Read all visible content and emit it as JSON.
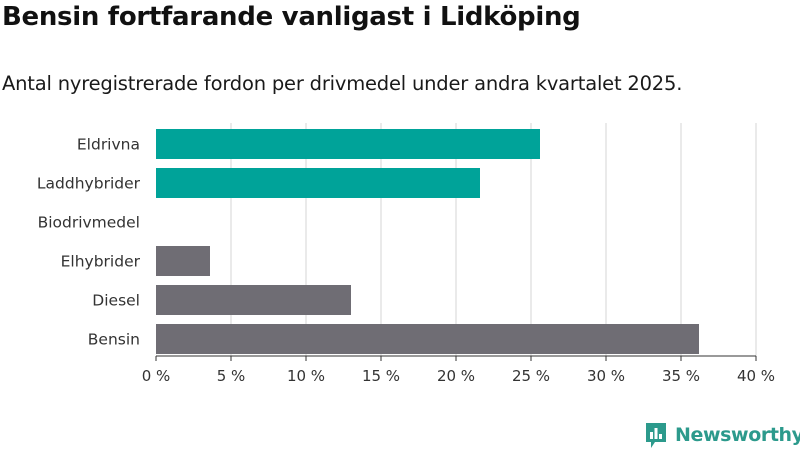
{
  "chart_data": {
    "type": "bar",
    "orientation": "horizontal",
    "title": "Bensin fortfarande vanligast i Lidköping",
    "subtitle": "Antal nyregistrerade fordon per drivmedel under andra kvartalet 2025.",
    "categories": [
      "Eldrivna",
      "Laddhybrider",
      "Biodrivmedel",
      "Elhybrider",
      "Diesel",
      "Bensin"
    ],
    "values": [
      25.6,
      21.6,
      0,
      3.6,
      13.0,
      36.2
    ],
    "bar_colors": [
      "#00a399",
      "#00a399",
      "#00a399",
      "#6f6d74",
      "#6f6d74",
      "#6f6d74"
    ],
    "xlim": [
      0,
      40
    ],
    "xticks": [
      0,
      5,
      10,
      15,
      20,
      25,
      30,
      35,
      40
    ],
    "xtick_labels": [
      "0 %",
      "5 %",
      "10 %",
      "15 %",
      "20 %",
      "25 %",
      "30 %",
      "35 %",
      "40 %"
    ],
    "xlabel": "",
    "ylabel": "",
    "grid": true
  },
  "branding": {
    "logo_text": "Newsworthy",
    "logo_icon": "bar-chart-speech-bubble-icon",
    "color": "#2c9a8c"
  }
}
